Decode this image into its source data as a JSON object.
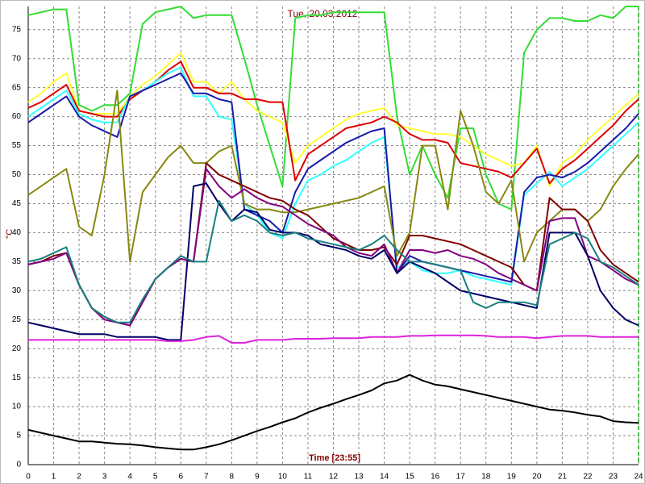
{
  "chart_data": {
    "type": "line",
    "title": "Tue, 20.03.2012",
    "ylabel": "°C",
    "xlabel": "Time [23:55]",
    "x": [
      0,
      0.5,
      1,
      1.5,
      2,
      2.5,
      3,
      3.5,
      4,
      4.5,
      5,
      5.5,
      6,
      6.5,
      7,
      7.5,
      8,
      8.5,
      9,
      9.5,
      10,
      10.5,
      11,
      11.5,
      12,
      12.5,
      13,
      13.5,
      14,
      14.5,
      15,
      15.5,
      16,
      16.5,
      17,
      17.5,
      18,
      18.5,
      19,
      19.5,
      20,
      20.5,
      21,
      21.5,
      22,
      22.5,
      23,
      23.5,
      24
    ],
    "xlim": [
      0,
      24
    ],
    "ylim": [
      0,
      79
    ],
    "xticks": [
      0,
      1,
      2,
      3,
      4,
      5,
      6,
      7,
      8,
      9,
      10,
      11,
      12,
      13,
      14,
      15,
      16,
      17,
      18,
      19,
      20,
      21,
      22,
      23,
      24
    ],
    "yticks": [
      0,
      5,
      10,
      15,
      20,
      25,
      30,
      35,
      40,
      45,
      50,
      55,
      60,
      65,
      70,
      75
    ],
    "grid": true,
    "series": [
      {
        "color": "#33dd33",
        "values": [
          77.5,
          78,
          78.5,
          78.5,
          62,
          61,
          62,
          62,
          64,
          76,
          78,
          78.5,
          79,
          77,
          77.5,
          77.5,
          77.5,
          70,
          62,
          55,
          48,
          77,
          77.5,
          77.5,
          78,
          78,
          78,
          78,
          78,
          60,
          50,
          55,
          50,
          46,
          58,
          58,
          50,
          45,
          44,
          71,
          75,
          77,
          77,
          76.5,
          76.5,
          77.5,
          77,
          79,
          79
        ]
      },
      {
        "color": "#ffff33",
        "values": [
          62.5,
          64,
          66,
          67.5,
          61,
          60.5,
          60.5,
          60.5,
          63.5,
          65.5,
          67,
          69,
          71,
          66,
          66,
          64,
          66,
          63,
          61,
          60,
          59,
          52,
          55,
          56.5,
          58,
          59.5,
          60.5,
          61,
          61.5,
          58.5,
          58,
          57.5,
          57,
          57,
          56.5,
          55,
          53.5,
          52.5,
          51.5,
          52,
          55,
          48,
          52,
          53.5,
          56,
          58,
          60,
          62,
          64
        ]
      },
      {
        "color": "#dd0000",
        "values": [
          61.5,
          62.5,
          64,
          65.5,
          61,
          60.5,
          60,
          60,
          63,
          64.5,
          66,
          68,
          69.5,
          65,
          65,
          64,
          64,
          63,
          63,
          62.5,
          62.5,
          49,
          53.5,
          55,
          56.5,
          58,
          58.5,
          59,
          60,
          59,
          57,
          56,
          56,
          55.5,
          52,
          51.5,
          51,
          50.5,
          49.5,
          52,
          54.5,
          48.5,
          51,
          52.5,
          54.5,
          56.5,
          58.5,
          61,
          63
        ]
      },
      {
        "color": "#33ffff",
        "values": [
          60,
          61.5,
          63,
          64.5,
          60.5,
          59.5,
          59,
          59,
          63.5,
          64.5,
          66,
          67.5,
          68.5,
          63.5,
          63.5,
          60,
          59.5,
          45,
          43,
          40,
          39,
          45,
          49,
          50,
          51.5,
          52.5,
          54,
          55.5,
          56.5,
          34,
          35,
          33.5,
          33,
          33,
          33.5,
          32.5,
          32,
          31.5,
          31,
          46.5,
          48.5,
          50.5,
          48,
          49.5,
          51,
          53,
          55,
          57,
          59
        ]
      },
      {
        "color": "#1a1aaa",
        "values": [
          59,
          60.5,
          62,
          63.5,
          60,
          58.5,
          57.5,
          56.5,
          63.5,
          64.5,
          65.5,
          66.5,
          67.5,
          64,
          64,
          63,
          62.5,
          44,
          43,
          42,
          40,
          47,
          51,
          52.5,
          54,
          55.5,
          56.5,
          57.5,
          58,
          33,
          36,
          35,
          34.5,
          34,
          33.5,
          33,
          32.5,
          32,
          31.5,
          47,
          49.5,
          50,
          49.5,
          50.5,
          52,
          54,
          56,
          58,
          60.5
        ]
      },
      {
        "color": "#888811",
        "values": [
          46.5,
          48,
          49.5,
          51,
          41,
          39.5,
          50,
          64.5,
          35,
          47,
          50,
          53,
          55,
          52,
          52,
          54,
          55,
          45,
          44,
          44,
          43.5,
          43.5,
          44,
          44.5,
          45,
          45.5,
          46,
          47,
          48,
          36,
          40,
          55,
          55,
          44,
          61,
          55,
          47,
          45,
          49,
          35,
          40,
          42,
          44,
          44,
          42,
          44,
          48,
          51,
          53.5
        ]
      },
      {
        "color": "#800000",
        "values": [
          34.5,
          35,
          36,
          36.5,
          31,
          27,
          25.5,
          24.5,
          24,
          28,
          32,
          34,
          35.5,
          35,
          52,
          50,
          49,
          48,
          47,
          46,
          45.5,
          44,
          43,
          41,
          39,
          38,
          37,
          37,
          37.5,
          34.5,
          39.5,
          39.5,
          39,
          38.5,
          38,
          37,
          36,
          35,
          34,
          31,
          30,
          46,
          44,
          44,
          42,
          37,
          34.5,
          33,
          31.5
        ]
      },
      {
        "color": "#800080",
        "values": [
          34.5,
          35,
          35.5,
          36.5,
          31,
          27,
          25,
          24.5,
          24,
          28,
          32,
          34,
          35.5,
          35,
          51,
          48,
          46,
          47.5,
          46,
          45,
          44.5,
          43,
          41.5,
          40.5,
          39.5,
          37.5,
          36.5,
          36,
          38,
          33,
          37,
          37,
          36.5,
          37,
          36,
          35.5,
          34.5,
          33,
          32,
          31,
          30,
          42,
          42.5,
          42.5,
          36,
          35,
          33.5,
          32,
          31
        ]
      },
      {
        "color": "#000066",
        "values": [
          24.5,
          24,
          23.5,
          23,
          22.5,
          22.5,
          22.5,
          22,
          22,
          22,
          22,
          21.5,
          21.5,
          48,
          48.5,
          45,
          42,
          44,
          43.5,
          40.5,
          40,
          40,
          39.5,
          38,
          37.5,
          37,
          36,
          35.5,
          37,
          33,
          35,
          34,
          33,
          31.5,
          30,
          29.5,
          29,
          28.5,
          28,
          27.5,
          27,
          40,
          40,
          40,
          36,
          30,
          27,
          25,
          24
        ]
      },
      {
        "color": "#1a7f7f",
        "values": [
          35,
          35.5,
          36.5,
          37.5,
          31,
          27,
          25.5,
          24.5,
          24.5,
          28.5,
          32,
          34,
          36,
          35,
          35,
          45.5,
          42,
          43,
          42,
          40,
          39.5,
          40,
          39,
          38.5,
          38,
          37.5,
          37,
          38,
          39.5,
          37,
          35,
          35,
          34.5,
          34,
          33.5,
          28,
          27,
          28,
          28,
          28,
          27.5,
          38,
          39,
          40,
          39,
          35,
          34,
          32.5,
          31
        ]
      },
      {
        "color": "#dd22dd",
        "values": [
          21.5,
          21.5,
          21.5,
          21.5,
          21.5,
          21.5,
          21.5,
          21.5,
          21.5,
          21.5,
          21.5,
          21.3,
          21.3,
          21.5,
          22,
          22.2,
          21,
          21,
          21.5,
          21.5,
          21.5,
          21.7,
          21.7,
          21.7,
          21.8,
          21.8,
          21.8,
          22,
          22,
          22,
          22.2,
          22.2,
          22.3,
          22.3,
          22.3,
          22.3,
          22.2,
          22,
          22,
          22,
          21.8,
          22,
          22.2,
          22.2,
          22.2,
          22,
          22,
          22,
          22
        ]
      },
      {
        "color": "#000000",
        "values": [
          6,
          5.5,
          5,
          4.5,
          4,
          4,
          3.8,
          3.6,
          3.5,
          3.3,
          3,
          2.8,
          2.6,
          2.6,
          3,
          3.5,
          4.2,
          5,
          5.8,
          6.5,
          7.3,
          8,
          9,
          9.8,
          10.5,
          11.3,
          12,
          12.8,
          14,
          14.5,
          15.5,
          14.5,
          13.8,
          13.5,
          13,
          12.5,
          12,
          11.5,
          11,
          10.5,
          10,
          9.5,
          9.3,
          9,
          8.6,
          8.3,
          7.5,
          7.3,
          7.2
        ]
      }
    ]
  }
}
